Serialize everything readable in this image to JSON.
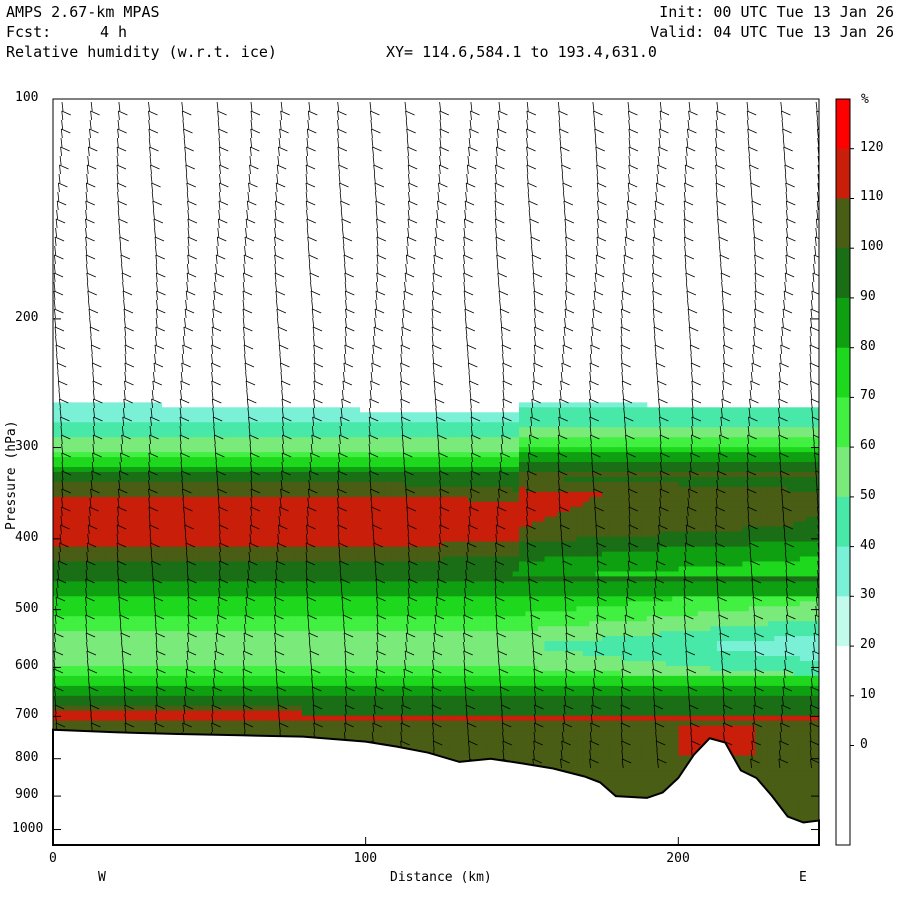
{
  "header": {
    "model": "AMPS 2.67-km MPAS",
    "fcst_label": "Fcst:",
    "fcst_value": "4 h",
    "field": "Relative humidity (w.r.t. ice)",
    "xy": "XY= 114.6,584.1 to 193.4,631.0",
    "init": "Init: 00 UTC Tue 13 Jan 26",
    "valid": "Valid: 04 UTC Tue 13 Jan 26"
  },
  "chart_data": {
    "type": "heatmap",
    "xlabel": "Distance (km)",
    "ylabel": "Pressure (hPa)",
    "xlim": [
      0,
      245
    ],
    "ylim": [
      100,
      1050
    ],
    "y_scale": "log",
    "x_ticks": [
      "0",
      "100",
      "200"
    ],
    "x_tick_values": [
      0,
      100,
      200
    ],
    "y_ticks": [
      "100",
      "200",
      "300",
      "400",
      "500",
      "600",
      "700",
      "800",
      "900",
      "1000"
    ],
    "y_tick_values": [
      100,
      200,
      300,
      400,
      500,
      600,
      700,
      800,
      900,
      1000
    ],
    "west_label": "W",
    "east_label": "E",
    "colorbar": {
      "unit": "%",
      "labels": [
        "120",
        "110",
        "100",
        "90",
        "80",
        "70",
        "60",
        "50",
        "40",
        "30",
        "20",
        "10",
        "0"
      ],
      "colors": [
        "#ff0000",
        "#c81e0a",
        "#4a5d14",
        "#1a6e16",
        "#0ea010",
        "#1ed81e",
        "#41f041",
        "#7aea7a",
        "#48e8a8",
        "#7af0d6",
        "#c2fbec",
        "#ffffff",
        "#ffffff",
        "#ffffff",
        "#ffffff"
      ]
    },
    "terrain_km": [
      0,
      20,
      40,
      60,
      80,
      100,
      110,
      120,
      130,
      140,
      150,
      160,
      170,
      175,
      180,
      190,
      195,
      200,
      205,
      210,
      215,
      220,
      225,
      230,
      235,
      240,
      245
    ],
    "terrain_hpa": [
      730,
      736,
      740,
      743,
      746,
      758,
      770,
      785,
      808,
      800,
      812,
      825,
      846,
      862,
      900,
      905,
      890,
      850,
      790,
      750,
      760,
      830,
      850,
      900,
      960,
      978,
      972
    ],
    "rh_layers_hpa": {
      "pressures": [
        260,
        300,
        330,
        360,
        400,
        430,
        460,
        480,
        520,
        560,
        600,
        650,
        700,
        730
      ],
      "rh": [
        30,
        55,
        95,
        118,
        115,
        100,
        90,
        80,
        65,
        50,
        60,
        85,
        118,
        100
      ]
    }
  }
}
